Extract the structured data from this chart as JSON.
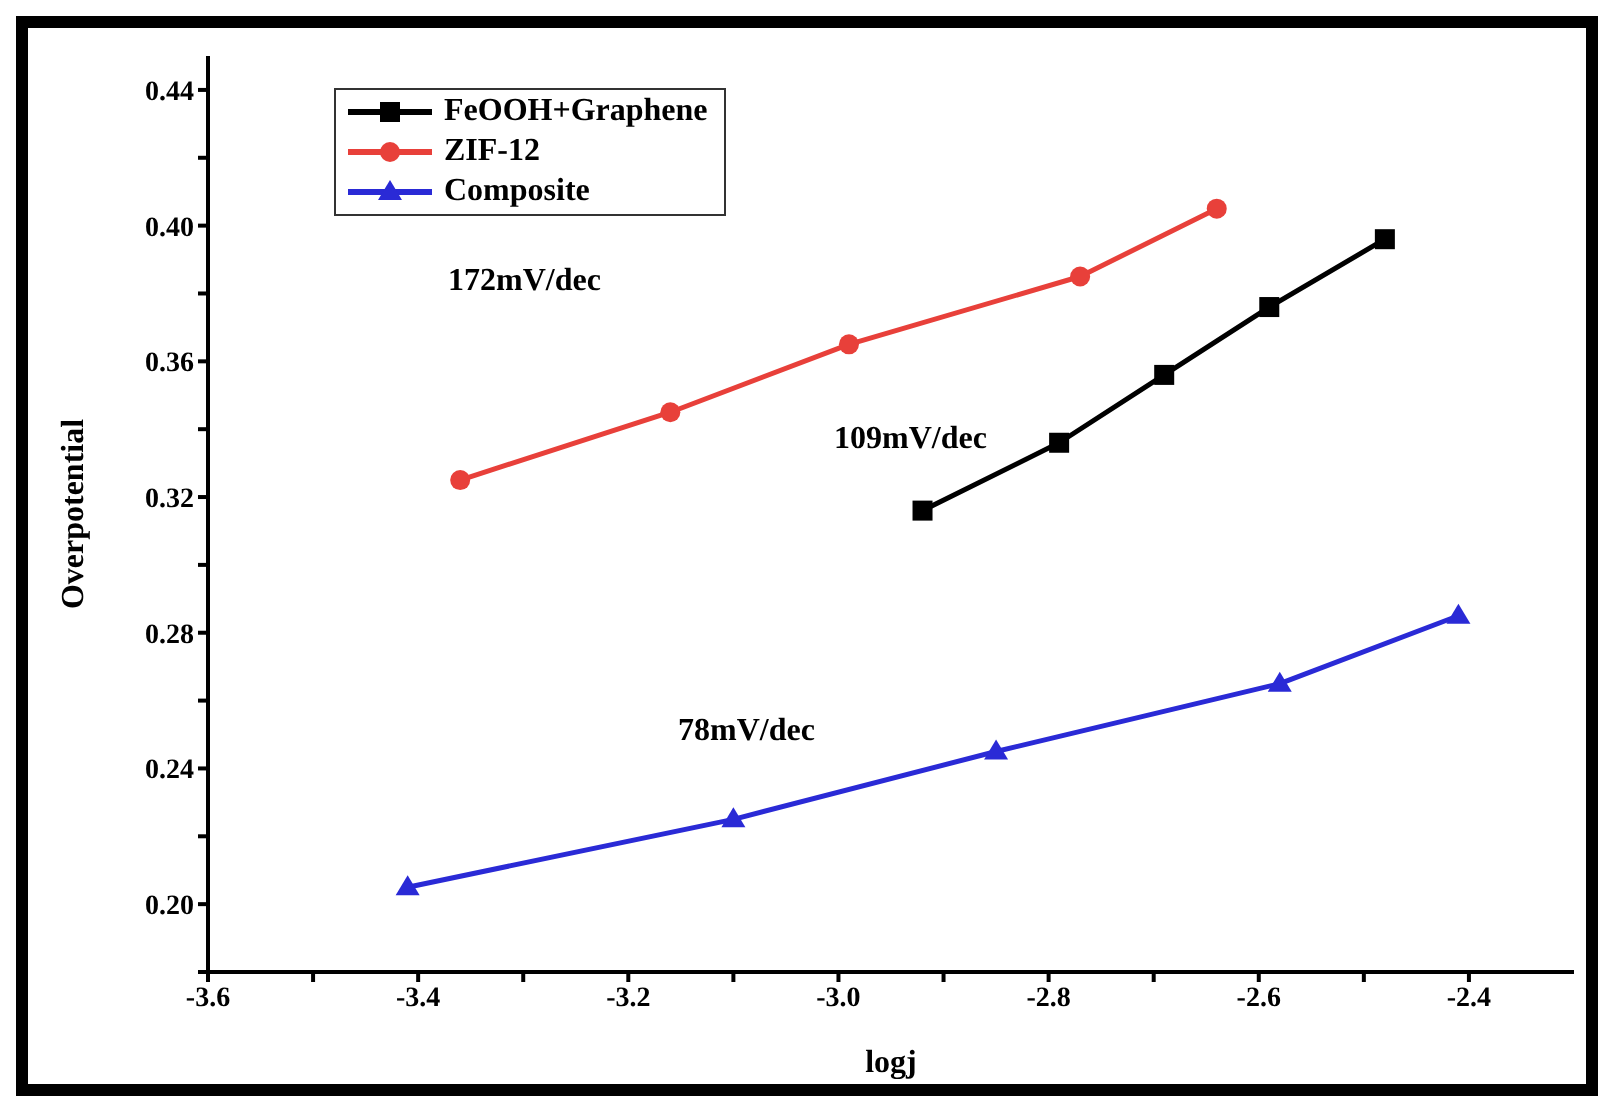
{
  "chart_data": {
    "type": "line",
    "xlabel": "logj",
    "ylabel": "Overpotential",
    "xlim": [
      -3.6,
      -2.3
    ],
    "ylim": [
      0.18,
      0.45
    ],
    "xticks": [
      {
        "value": -3.6,
        "label": "-3.6"
      },
      {
        "value": -3.5,
        "label": null
      },
      {
        "value": -3.4,
        "label": "-3.4"
      },
      {
        "value": -3.3,
        "label": null
      },
      {
        "value": -3.2,
        "label": "-3.2"
      },
      {
        "value": -3.1,
        "label": null
      },
      {
        "value": -3.0,
        "label": "-3.0"
      },
      {
        "value": -2.9,
        "label": null
      },
      {
        "value": -2.8,
        "label": "-2.8"
      },
      {
        "value": -2.7,
        "label": null
      },
      {
        "value": -2.6,
        "label": "-2.6"
      },
      {
        "value": -2.5,
        "label": null
      },
      {
        "value": -2.4,
        "label": "-2.4"
      }
    ],
    "yticks": [
      {
        "value": 0.18,
        "label": null
      },
      {
        "value": 0.2,
        "label": "0.20"
      },
      {
        "value": 0.22,
        "label": null
      },
      {
        "value": 0.24,
        "label": "0.24"
      },
      {
        "value": 0.26,
        "label": null
      },
      {
        "value": 0.28,
        "label": "0.28"
      },
      {
        "value": 0.3,
        "label": null
      },
      {
        "value": 0.32,
        "label": "0.32"
      },
      {
        "value": 0.34,
        "label": null
      },
      {
        "value": 0.36,
        "label": "0.36"
      },
      {
        "value": 0.38,
        "label": null
      },
      {
        "value": 0.4,
        "label": "0.40"
      },
      {
        "value": 0.42,
        "label": null
      },
      {
        "value": 0.44,
        "label": "0.44"
      }
    ],
    "grid": false,
    "legend": "top left",
    "series": [
      {
        "name": "FeOOH+Graphene",
        "color": "#000000",
        "marker": "square",
        "x": [
          -2.92,
          -2.79,
          -2.69,
          -2.59,
          -2.48
        ],
        "values": [
          0.316,
          0.336,
          0.356,
          0.376,
          0.396
        ]
      },
      {
        "name": "ZIF-12",
        "color": "#e8403a",
        "marker": "circle",
        "x": [
          -3.36,
          -3.16,
          -2.99,
          -2.77,
          -2.64
        ],
        "values": [
          0.325,
          0.345,
          0.365,
          0.385,
          0.405
        ]
      },
      {
        "name": "Composite",
        "color": "#2a2ad6",
        "marker": "triangle",
        "x": [
          -3.41,
          -3.1,
          -2.85,
          -2.58,
          -2.41
        ],
        "values": [
          0.205,
          0.225,
          0.245,
          0.265,
          0.285
        ]
      }
    ],
    "annotations": [
      "172mV/dec",
      "109mV/dec",
      "78mV/dec"
    ]
  }
}
